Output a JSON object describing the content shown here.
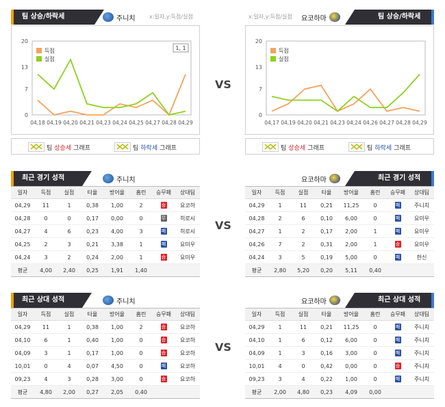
{
  "top": {
    "left": {
      "title": "팀 상승/하락세",
      "team": "주니치",
      "hint": "x:일자,y:득점/실점",
      "yticks": [
        "20",
        "13",
        "7",
        "0"
      ],
      "xlabels": [
        "04,18",
        "04,19",
        "04,20",
        "04,21",
        "04,23",
        "04,24",
        "04,25",
        "04,27",
        "04,28",
        "04,29"
      ],
      "legend": [
        "득점",
        "실점"
      ],
      "tag": "1, 1",
      "scored": [
        4,
        0,
        1,
        0,
        0,
        3,
        2,
        4,
        0,
        11
      ],
      "allowed": [
        11,
        7,
        15,
        3,
        2,
        2,
        3,
        6,
        0,
        1
      ]
    },
    "right": {
      "title": "팀 상승/하락세",
      "team": "요코하마",
      "hint": "x:일자,y:득점/실점",
      "yticks": [
        "20",
        "13",
        "7",
        "0"
      ],
      "xlabels": [
        "04,17",
        "04,19",
        "04,20",
        "04,21",
        "04,23",
        "04,24",
        "04,26",
        "04,27",
        "04,28",
        "04,29"
      ],
      "legend": [
        "득점",
        "실점"
      ],
      "scored": [
        1,
        3,
        7,
        8,
        1,
        3,
        7,
        1,
        2,
        1
      ],
      "allowed": [
        5,
        4,
        4,
        4,
        1,
        5,
        2,
        2,
        6,
        11
      ]
    },
    "legend_labels": {
      "team": "팀",
      "up": "상승세",
      "down": "하락세",
      "graph": "그래프"
    },
    "vs": "VS"
  },
  "recent": {
    "left_title": "최근 경기 성적",
    "right_title": "최근 경기 성적",
    "left_team": "주니치",
    "right_team": "요코하마",
    "headers": [
      "일자",
      "득점",
      "실점",
      "타율",
      "방어율",
      "홈런",
      "승무패",
      "상대팀"
    ],
    "left_rows": [
      [
        "04,29",
        "11",
        "1",
        "0,38",
        "1,00",
        "2",
        "승",
        "요코하"
      ],
      [
        "04,28",
        "0",
        "0",
        "0,17",
        "0,00",
        "0",
        "무",
        "히로시"
      ],
      [
        "04,27",
        "4",
        "6",
        "0,23",
        "4,00",
        "3",
        "패",
        "히로시"
      ],
      [
        "04,25",
        "2",
        "3",
        "0,21",
        "3,38",
        "1",
        "패",
        "요미우"
      ],
      [
        "04,24",
        "3",
        "2",
        "0,24",
        "2,00",
        "1",
        "승",
        "요미우"
      ]
    ],
    "left_avg": [
      "평균",
      "4,00",
      "2,40",
      "0,25",
      "1,91",
      "1,40",
      "",
      ""
    ],
    "right_rows": [
      [
        "04,29",
        "1",
        "11",
        "0,21",
        "11,25",
        "0",
        "패",
        "주니치"
      ],
      [
        "04,28",
        "2",
        "6",
        "0,10",
        "6,00",
        "0",
        "패",
        "요미우"
      ],
      [
        "04,27",
        "1",
        "2",
        "0,17",
        "2,00",
        "1",
        "패",
        "요미우"
      ],
      [
        "04,26",
        "7",
        "2",
        "0,31",
        "2,00",
        "1",
        "승",
        "요미우"
      ],
      [
        "04,24",
        "3",
        "5",
        "0,19",
        "5,00",
        "0",
        "패",
        "한신"
      ]
    ],
    "right_avg": [
      "평균",
      "2,80",
      "5,20",
      "0,20",
      "5,11",
      "0,40",
      "",
      ""
    ],
    "vs": "VS"
  },
  "h2h": {
    "left_title": "최근 상대 성적",
    "right_title": "최근 상대 성적",
    "left_team": "주니치",
    "right_team": "요코하마",
    "headers": [
      "일자",
      "득점",
      "실점",
      "타율",
      "방어율",
      "홈런",
      "승무패",
      "상대팀"
    ],
    "left_rows": [
      [
        "04,29",
        "11",
        "1",
        "0,38",
        "1,00",
        "2",
        "승",
        "요코하"
      ],
      [
        "04,10",
        "6",
        "1",
        "0,40",
        "1,00",
        "0",
        "승",
        "요코하"
      ],
      [
        "04,09",
        "3",
        "1",
        "0,17",
        "1,00",
        "0",
        "승",
        "요코하"
      ],
      [
        "10,01",
        "0",
        "4",
        "0,07",
        "4,50",
        "0",
        "패",
        "요코하"
      ],
      [
        "09,23",
        "4",
        "3",
        "0,28",
        "3,00",
        "0",
        "승",
        "요코하"
      ]
    ],
    "left_avg": [
      "평균",
      "4,80",
      "2,00",
      "0,27",
      "2,05",
      "0,40",
      "",
      ""
    ],
    "right_rows": [
      [
        "04,29",
        "1",
        "11",
        "0,21",
        "11,25",
        "0",
        "패",
        "주니치"
      ],
      [
        "04,10",
        "1",
        "6",
        "0,12",
        "6,00",
        "0",
        "패",
        "주니치"
      ],
      [
        "04,09",
        "1",
        "3",
        "0,16",
        "3,00",
        "0",
        "패",
        "주니치"
      ],
      [
        "10,01",
        "4",
        "0",
        "0,42",
        "0,00",
        "0",
        "승",
        "주니치"
      ],
      [
        "09,23",
        "3",
        "4",
        "0,22",
        "1,00",
        "0",
        "패",
        "주니치"
      ]
    ],
    "right_avg": [
      "평균",
      "2,00",
      "4,80",
      "0,23",
      "4,09",
      "0,00",
      "",
      ""
    ],
    "vs": "VS"
  },
  "colors": {
    "scored": "#f5a25d",
    "allowed": "#8fd11f",
    "stripe_orange": "#f5a000",
    "stripe_blue": "#3a7ad8",
    "win": "#d9232b",
    "loss": "#2a4fa8",
    "draw": "#666666"
  }
}
